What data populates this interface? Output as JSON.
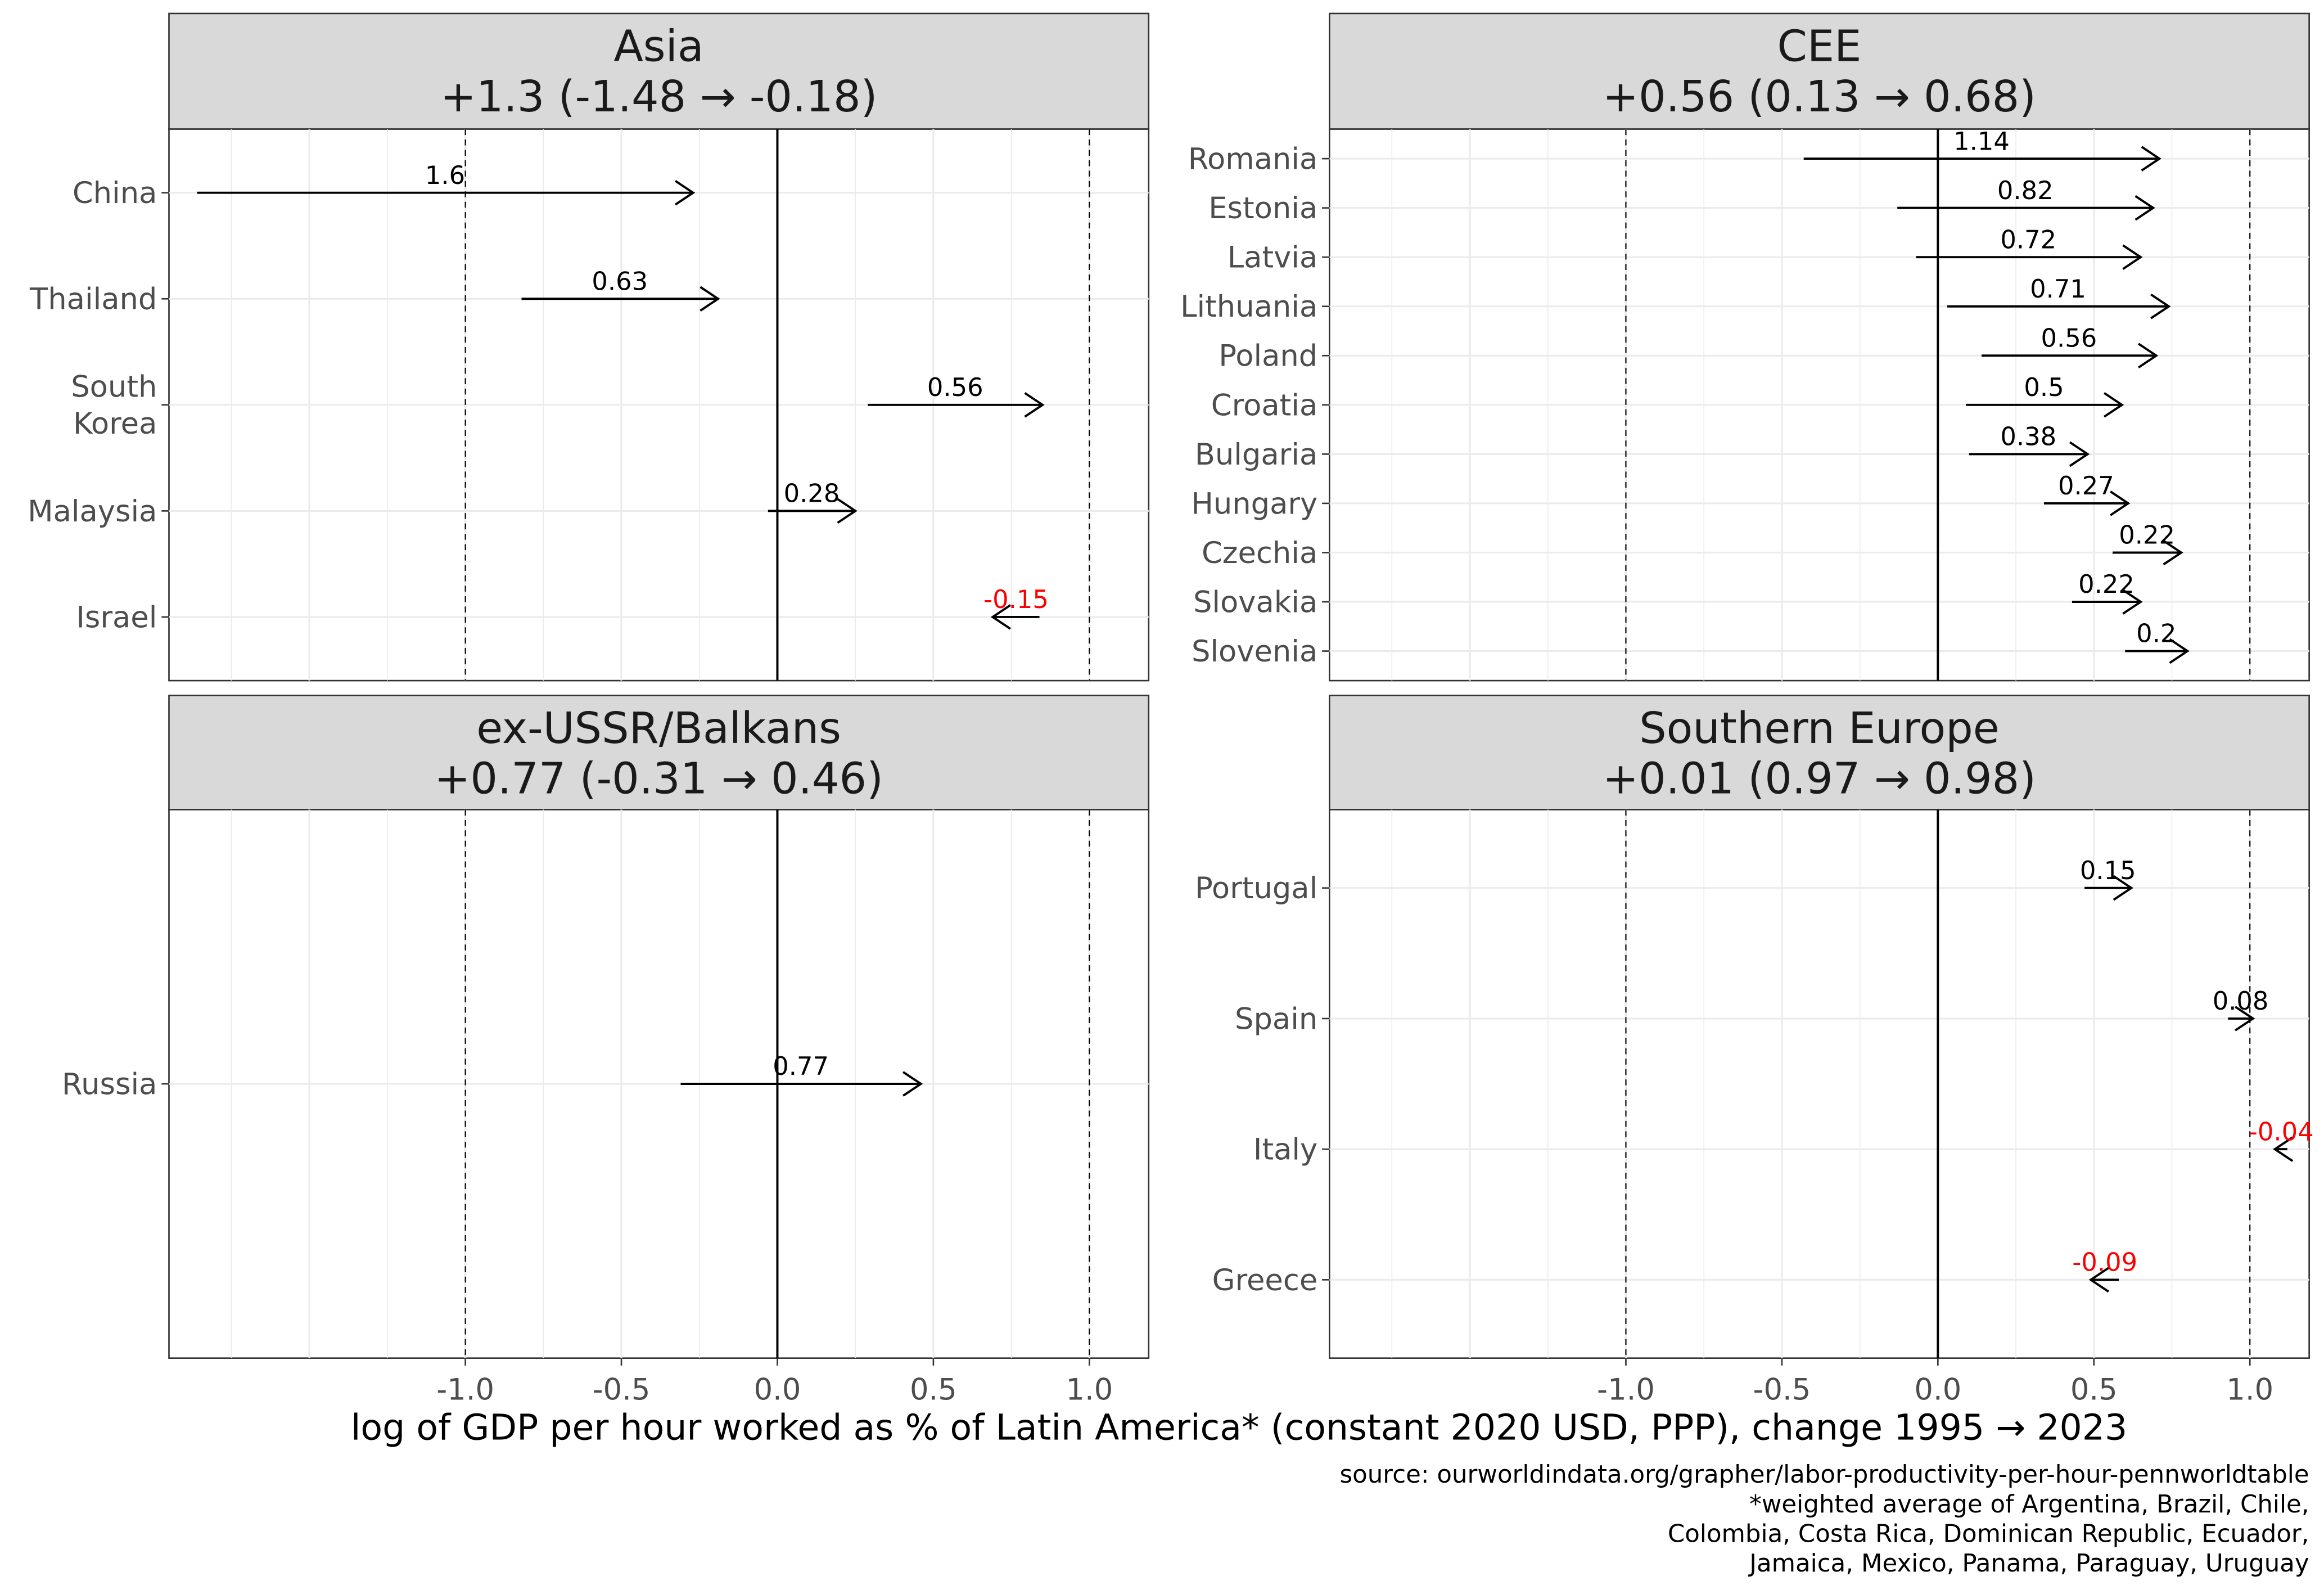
{
  "chart_data": {
    "type": "arrow-faceted",
    "xlabel": "log of GDP per hour worked as % of Latin America* (constant 2020 USD, PPP), change 1995 → 2023",
    "caption": [
      "source: ourworldindata.org/grapher/labor-productivity-per-hour-pennworldtable",
      "*weighted average of Argentina, Brazil, Chile,",
      "Colombia, Costa Rica, Dominican Republic, Ecuador,",
      "Jamaica, Mexico, Panama, Paraguay, Uruguay"
    ],
    "xlim": [
      -1.95,
      1.19
    ],
    "x_ticks": [
      "-1.0",
      "-0.5",
      "0.0",
      "0.5",
      "1.0"
    ],
    "x_tick_values": [
      -1,
      -0.5,
      0,
      0.5,
      1
    ],
    "reference_lines": {
      "solid": 0,
      "dashed": [
        -1,
        1
      ]
    },
    "colors": {
      "positive": "#000000",
      "negative": "#ff0000",
      "strip": "#d9d9d9"
    },
    "panels": [
      {
        "title": "Asia",
        "subtitle": "+1.3 (-1.48 → -0.18)",
        "rows": [
          {
            "country": "China",
            "start": -1.86,
            "end": -0.27,
            "label": "1.6"
          },
          {
            "country": "Thailand",
            "start": -0.82,
            "end": -0.19,
            "label": "0.63"
          },
          {
            "country": "South\nKorea",
            "start": 0.29,
            "end": 0.85,
            "label": "0.56"
          },
          {
            "country": "Malaysia",
            "start": -0.03,
            "end": 0.25,
            "label": "0.28"
          },
          {
            "country": "Israel",
            "start": 0.84,
            "end": 0.69,
            "label": "-0.15"
          }
        ]
      },
      {
        "title": "CEE",
        "subtitle": "+0.56 (0.13 → 0.68)",
        "rows": [
          {
            "country": "Romania",
            "start": -0.43,
            "end": 0.71,
            "label": "1.14"
          },
          {
            "country": "Estonia",
            "start": -0.13,
            "end": 0.69,
            "label": "0.82"
          },
          {
            "country": "Latvia",
            "start": -0.07,
            "end": 0.65,
            "label": "0.72"
          },
          {
            "country": "Lithuania",
            "start": 0.03,
            "end": 0.74,
            "label": "0.71"
          },
          {
            "country": "Poland",
            "start": 0.14,
            "end": 0.7,
            "label": "0.56"
          },
          {
            "country": "Croatia",
            "start": 0.09,
            "end": 0.59,
            "label": "0.5"
          },
          {
            "country": "Bulgaria",
            "start": 0.1,
            "end": 0.48,
            "label": "0.38"
          },
          {
            "country": "Hungary",
            "start": 0.34,
            "end": 0.61,
            "label": "0.27"
          },
          {
            "country": "Czechia",
            "start": 0.56,
            "end": 0.78,
            "label": "0.22"
          },
          {
            "country": "Slovakia",
            "start": 0.43,
            "end": 0.65,
            "label": "0.22"
          },
          {
            "country": "Slovenia",
            "start": 0.6,
            "end": 0.8,
            "label": "0.2"
          }
        ]
      },
      {
        "title": "ex-USSR/Balkans",
        "subtitle": "+0.77 (-0.31 → 0.46)",
        "rows": [
          {
            "country": "Russia",
            "start": -0.31,
            "end": 0.46,
            "label": "0.77"
          }
        ]
      },
      {
        "title": "Southern Europe",
        "subtitle": "+0.01 (0.97 → 0.98)",
        "rows": [
          {
            "country": "Portugal",
            "start": 0.47,
            "end": 0.62,
            "label": "0.15"
          },
          {
            "country": "Spain",
            "start": 0.93,
            "end": 1.01,
            "label": "0.08"
          },
          {
            "country": "Italy",
            "start": 1.12,
            "end": 1.08,
            "label": "-0.04"
          },
          {
            "country": "Greece",
            "start": 0.58,
            "end": 0.49,
            "label": "-0.09"
          }
        ]
      }
    ]
  }
}
